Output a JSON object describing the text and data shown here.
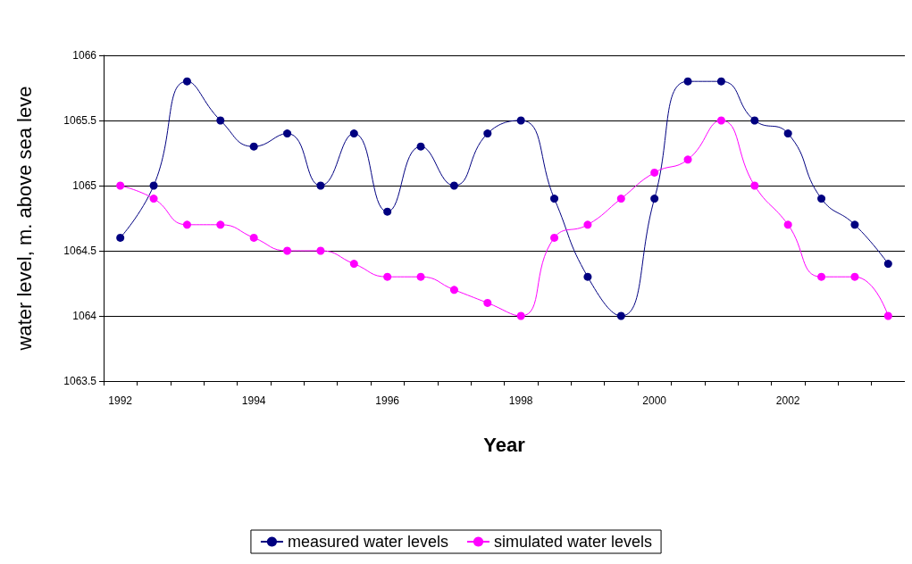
{
  "chart_data": {
    "type": "line",
    "xlabel": "Year",
    "ylabel": "water level, m. above sea leve",
    "categories": [
      "1992",
      null,
      null,
      null,
      "1994",
      null,
      null,
      null,
      "1996",
      null,
      null,
      null,
      "1998",
      null,
      null,
      null,
      "2000",
      null,
      null,
      null,
      "2002",
      null,
      null,
      null
    ],
    "series": [
      {
        "name": "measured water levels",
        "color": "#000080",
        "values": [
          1064.6,
          1065.0,
          1065.8,
          1065.5,
          1065.3,
          1065.4,
          1065.0,
          1065.4,
          1064.8,
          1065.3,
          1065.0,
          1065.4,
          1065.5,
          1064.9,
          1064.3,
          1064.0,
          1064.9,
          1065.8,
          1065.8,
          1065.5,
          1065.4,
          1064.9,
          1064.7,
          1064.4
        ]
      },
      {
        "name": "simulated water levels",
        "color": "#ff00ff",
        "values": [
          1065.0,
          1064.9,
          1064.7,
          1064.7,
          1064.6,
          1064.5,
          1064.5,
          1064.4,
          1064.3,
          1064.3,
          1064.2,
          1064.1,
          1064.0,
          1064.6,
          1064.7,
          1064.9,
          1065.1,
          1065.2,
          1065.5,
          1065.0,
          1064.7,
          1064.3,
          1064.3,
          1064.0
        ]
      }
    ],
    "ylim": [
      1063.5,
      1066
    ],
    "yticks": [
      1063.5,
      1064,
      1064.5,
      1065,
      1065.5,
      1066
    ],
    "grid": "y",
    "legend": "bottom",
    "marker": "circle",
    "line_style": "solid"
  }
}
